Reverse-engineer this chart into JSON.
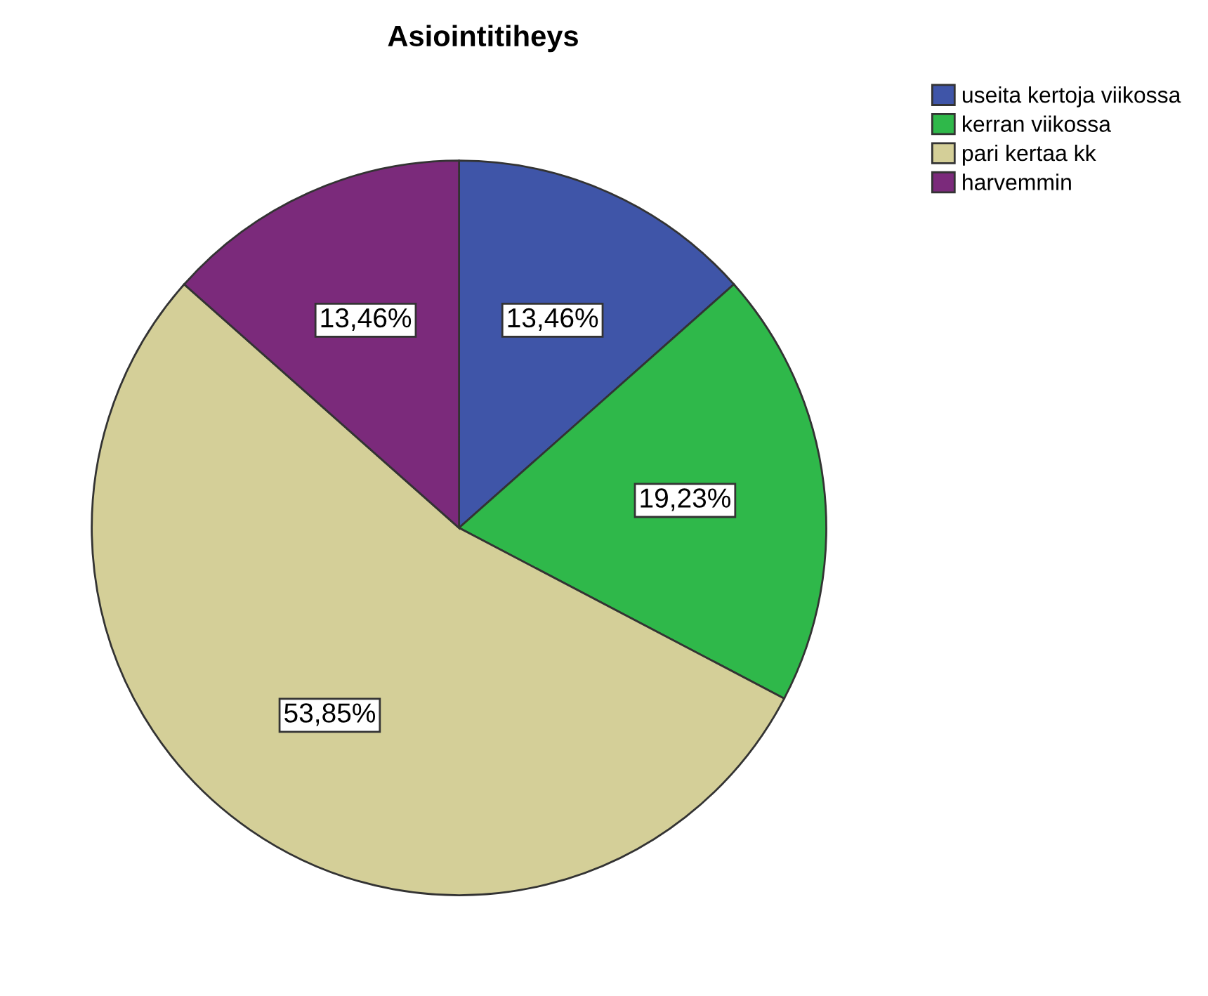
{
  "chart_data": {
    "type": "pie",
    "title": "Asiointitiheys",
    "categories": [
      "useita kertoja viikossa",
      "kerran viikossa",
      "pari kertaa kk",
      "harvemmin"
    ],
    "values": [
      13.46,
      19.23,
      53.85,
      13.46
    ],
    "value_labels": [
      "13,46%",
      "19,23%",
      "53,85%",
      "13,46%"
    ],
    "colors": [
      "#3f55a8",
      "#2fb84a",
      "#d4cf98",
      "#7b2a7b"
    ],
    "legend": "top right"
  }
}
